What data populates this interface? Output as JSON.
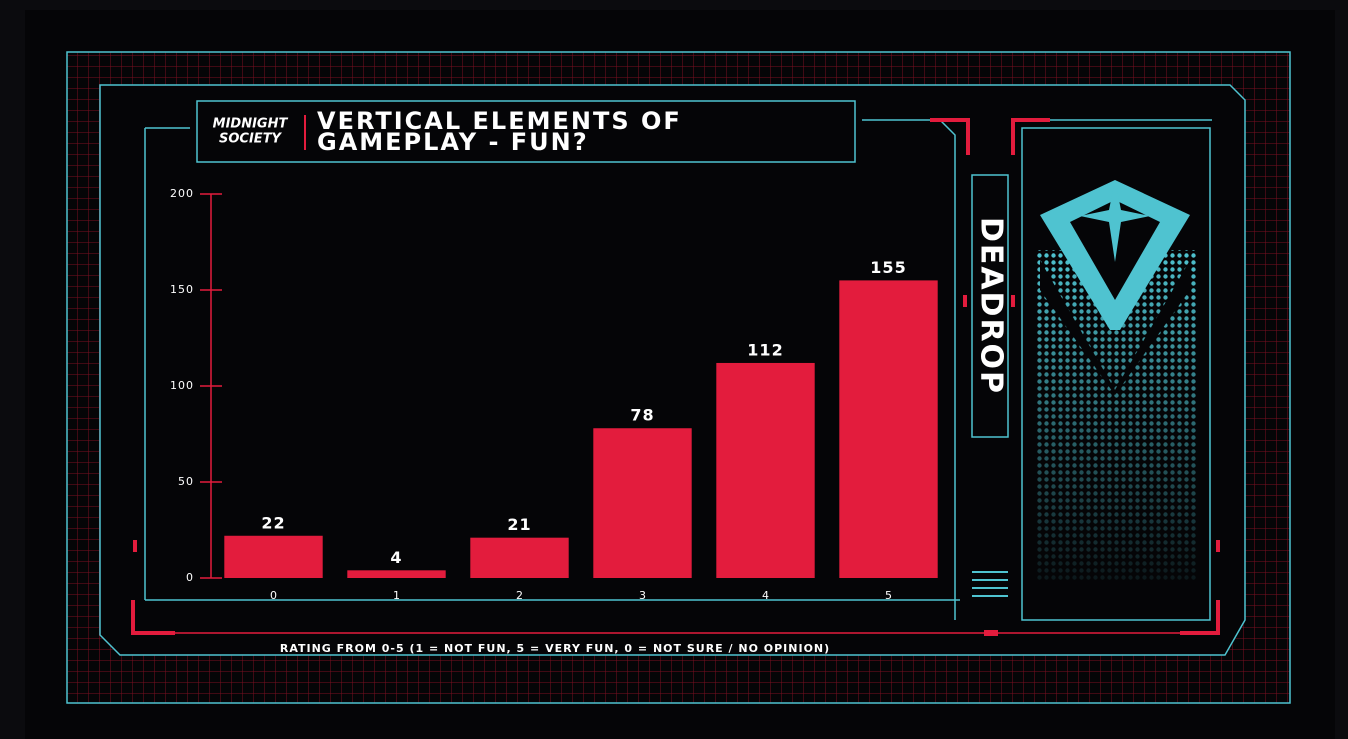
{
  "chart_data": {
    "type": "bar",
    "title": "VERTICAL ELEMENTS OF GAMEPLAY - FUN?",
    "x_label": "RATING FROM 0-5 (1 = NOT FUN, 5 = VERY FUN, 0 = NOT SURE / NO OPINION)",
    "categories": [
      "0",
      "1",
      "2",
      "3",
      "4",
      "5"
    ],
    "values": [
      22,
      4,
      21,
      78,
      112,
      155
    ],
    "color": "#e31c3d",
    "ylim": [
      0,
      200
    ],
    "yticks": [
      0,
      50,
      100,
      150,
      200
    ],
    "grid": false
  },
  "brand": {
    "logo_lines": [
      "MIDNIGHT",
      "SOCIETY"
    ],
    "game": "DEADROP"
  }
}
